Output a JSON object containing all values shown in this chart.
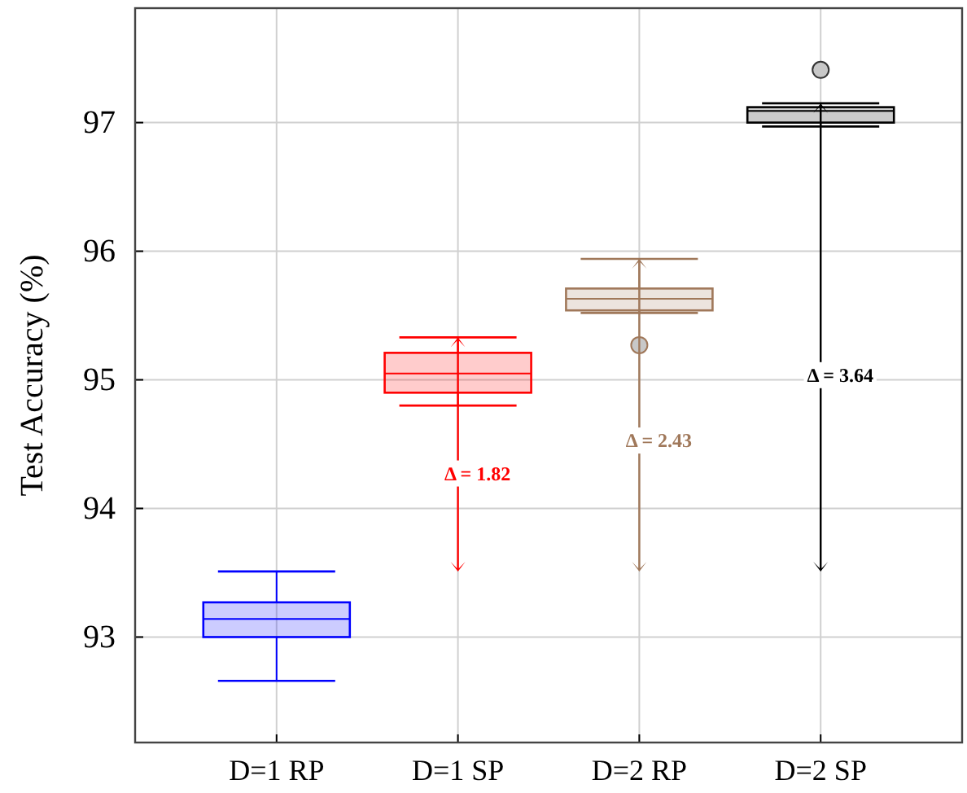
{
  "chart_data": {
    "type": "box",
    "ylabel": "Test Accuracy (%)",
    "categories": [
      "D=1 RP",
      "D=1 SP",
      "D=2 RP",
      "D=2 SP"
    ],
    "boxes": [
      {
        "low": 92.66,
        "q1": 93.0,
        "median": 93.14,
        "q3": 93.27,
        "high": 93.51
      },
      {
        "low": 94.8,
        "q1": 94.9,
        "median": 95.05,
        "q3": 95.21,
        "high": 95.33
      },
      {
        "low": 95.52,
        "q1": 95.54,
        "median": 95.63,
        "q3": 95.71,
        "high": 95.94,
        "outliers": [
          95.27
        ]
      },
      {
        "low": 96.97,
        "q1": 97.0,
        "median": 97.09,
        "q3": 97.12,
        "high": 97.15,
        "outliers": [
          97.41
        ]
      }
    ],
    "colors": [
      "#0000ff",
      "#ff0000",
      "#a0785a",
      "#000000"
    ],
    "annotations": [
      "Δ = 1.82",
      "Δ = 2.43",
      "Δ = 3.64"
    ],
    "ylim": [
      92.18,
      97.89
    ],
    "yticks": [
      93,
      94,
      95,
      96,
      97
    ],
    "grid": true
  }
}
